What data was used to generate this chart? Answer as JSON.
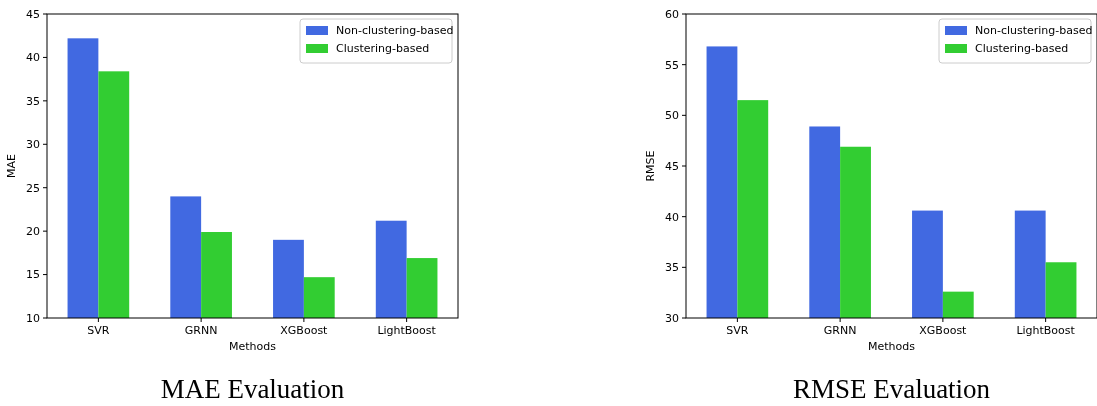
{
  "chart_data": [
    {
      "type": "bar",
      "title": "MAE Evaluation",
      "xlabel": "Methods",
      "ylabel": "MAE",
      "categories": [
        "SVR",
        "GRNN",
        "XGBoost",
        "LightBoost"
      ],
      "series": [
        {
          "name": "Non-clustering-based",
          "color": "#4169e1",
          "values": [
            42.2,
            24.0,
            19.0,
            21.2
          ]
        },
        {
          "name": "Clustering-based",
          "color": "#32cd32",
          "values": [
            38.4,
            19.9,
            14.7,
            16.9
          ]
        }
      ],
      "ylim": [
        10,
        45
      ],
      "yticks": [
        10,
        15,
        20,
        25,
        30,
        35,
        40,
        45
      ],
      "legend": "top right",
      "grid": false
    },
    {
      "type": "bar",
      "title": "RMSE Evaluation",
      "xlabel": "Methods",
      "ylabel": "RMSE",
      "categories": [
        "SVR",
        "GRNN",
        "XGBoost",
        "LightBoost"
      ],
      "series": [
        {
          "name": "Non-clustering-based",
          "color": "#4169e1",
          "values": [
            56.8,
            48.9,
            40.6,
            40.6
          ]
        },
        {
          "name": "Clustering-based",
          "color": "#32cd32",
          "values": [
            51.5,
            46.9,
            32.6,
            35.5
          ]
        }
      ],
      "ylim": [
        30,
        60
      ],
      "yticks": [
        30,
        35,
        40,
        45,
        50,
        55,
        60
      ],
      "legend": "top right",
      "grid": false
    }
  ]
}
